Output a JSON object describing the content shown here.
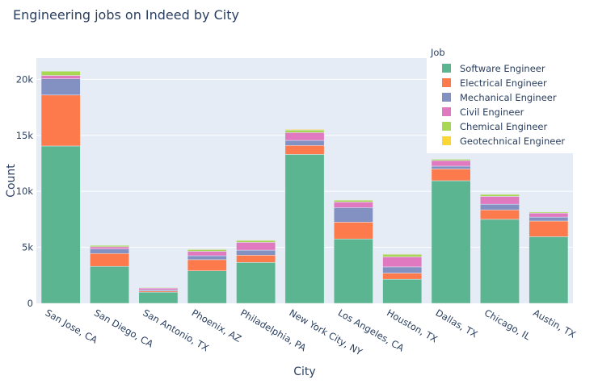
{
  "chart_data": {
    "type": "bar",
    "barmode": "stack",
    "title": "Engineering jobs on Indeed by City",
    "xlabel": "City",
    "ylabel": "Count",
    "ylim": [
      0,
      21900
    ],
    "yticks": [
      0,
      5000,
      10000,
      15000,
      20000
    ],
    "ytick_labels": [
      "0",
      "5k",
      "10k",
      "15k",
      "20k"
    ],
    "grid": true,
    "legend": {
      "title": "Job",
      "placement": "top-right"
    },
    "categories": [
      "San Jose, CA",
      "San Diego, CA",
      "San Antonio, TX",
      "Phoenix, AZ",
      "Philadelphia, PA",
      "New York City, NY",
      "Los Angeles, CA",
      "Houston, TX",
      "Dallas, TX",
      "Chicago, IL",
      "Austin, TX"
    ],
    "series": [
      {
        "name": "Software Engineer",
        "color": "#5cb591",
        "values": [
          14050,
          3300,
          1000,
          2900,
          3650,
          13300,
          5750,
          2150,
          10950,
          7500,
          5950
        ]
      },
      {
        "name": "Electrical Engineer",
        "color": "#fc7a4c",
        "values": [
          4550,
          1150,
          100,
          1000,
          650,
          800,
          1500,
          550,
          1050,
          850,
          1400
        ]
      },
      {
        "name": "Mechanical Engineer",
        "color": "#8390c2",
        "values": [
          1450,
          400,
          100,
          350,
          450,
          450,
          1300,
          550,
          250,
          500,
          350
        ]
      },
      {
        "name": "Civil Engineer",
        "color": "#e079c0",
        "values": [
          300,
          200,
          150,
          400,
          700,
          700,
          500,
          900,
          500,
          700,
          350
        ]
      },
      {
        "name": "Chemical Engineer",
        "color": "#a8d853",
        "values": [
          380,
          120,
          60,
          150,
          170,
          220,
          160,
          230,
          120,
          180,
          100
        ]
      },
      {
        "name": "Geotechnical Engineer",
        "color": "#fbd634",
        "values": [
          40,
          30,
          30,
          50,
          40,
          60,
          40,
          40,
          30,
          40,
          30
        ]
      }
    ]
  },
  "colors": {
    "plot_bg": "#e5ecf6",
    "grid": "#ffffff",
    "text": "#2a3f5f"
  }
}
